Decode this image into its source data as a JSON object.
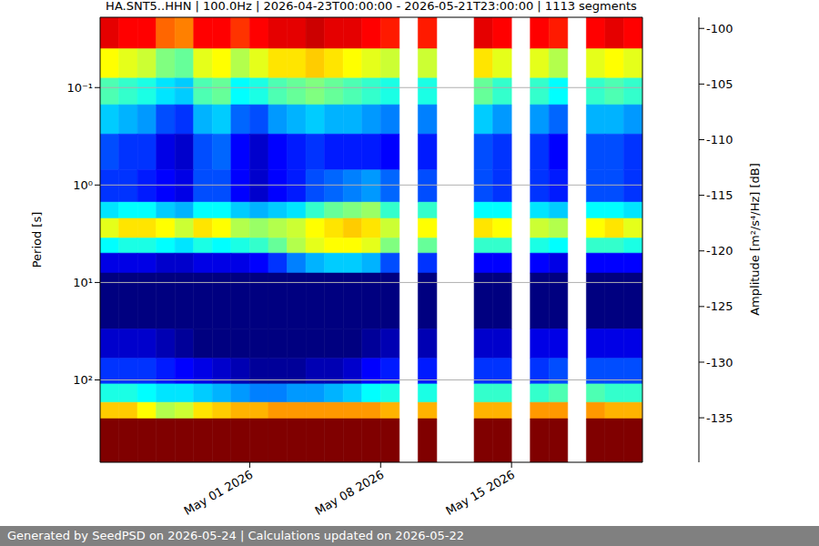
{
  "chart_data": {
    "type": "heatmap",
    "title": "HA.SNT5..HHN | 100.0Hz | 2026-04-23T00:00:00 - 2026-05-21T23:00:00 | 1113 segments",
    "y_label": "Period [s]",
    "colorbar_label": "Amplitude [m²/s⁴/Hz] [dB]",
    "x": [
      "2026-04-23",
      "2026-04-24",
      "2026-04-25",
      "2026-04-26",
      "2026-04-27",
      "2026-04-28",
      "2026-04-29",
      "2026-04-30",
      "2026-05-01",
      "2026-05-02",
      "2026-05-03",
      "2026-05-04",
      "2026-05-05",
      "2026-05-06",
      "2026-05-07",
      "2026-05-08",
      "2026-05-09",
      "2026-05-10",
      "2026-05-11",
      "2026-05-12",
      "2026-05-13",
      "2026-05-14",
      "2026-05-15",
      "2026-05-16",
      "2026-05-17",
      "2026-05-18",
      "2026-05-19",
      "2026-05-20",
      "2026-05-21"
    ],
    "xlim": [
      "2026-04-23",
      "2026-05-22"
    ],
    "xticks": [
      {
        "value": "2026-05-01",
        "label": "May 01 2026"
      },
      {
        "value": "2026-05-08",
        "label": "May 08 2026"
      },
      {
        "value": "2026-05-15",
        "label": "May 15 2026"
      }
    ],
    "y_edges": [
      0.019,
      0.04,
      0.08,
      0.15,
      0.3,
      0.7,
      1.5,
      2.2,
      3.5,
      5,
      8,
      30,
      60,
      110,
      170,
      250,
      700
    ],
    "ylim": [
      0.019,
      700
    ],
    "yticks": [
      {
        "value": 0.1,
        "label": "10⁻¹"
      },
      {
        "value": 1,
        "label": "10⁰"
      },
      {
        "value": 10,
        "label": "10¹"
      },
      {
        "value": 100,
        "label": "10²"
      }
    ],
    "log": "y",
    "grid": true,
    "z": [
      [
        -103,
        -104,
        -104,
        -108,
        -109,
        -104,
        -104,
        -106,
        -104,
        -103,
        -103,
        -102,
        -103,
        -103,
        -104,
        -105,
        null,
        -105,
        null,
        null,
        -103,
        -104,
        null,
        -104,
        -105,
        null,
        -104,
        -103,
        -104
      ],
      [
        -114,
        -115,
        -116,
        -119,
        -120,
        -115,
        -114,
        -117,
        -115,
        -113,
        -113,
        -112,
        -113,
        -114,
        -115,
        -116,
        null,
        -116,
        null,
        null,
        -113,
        -115,
        null,
        -115,
        -117,
        null,
        -115,
        -114,
        -115
      ],
      [
        -121,
        -122,
        -123,
        -125,
        -126,
        -121,
        -120,
        -124,
        -123,
        -121,
        -120,
        -119,
        -120,
        -121,
        -122,
        -123,
        null,
        -123,
        null,
        null,
        -120,
        -122,
        null,
        -122,
        -124,
        null,
        -122,
        -121,
        -122
      ],
      [
        -126,
        -127,
        -128,
        -131,
        -132,
        -127,
        -126,
        -130,
        -131,
        -128,
        -127,
        -126,
        -127,
        -127,
        -128,
        -129,
        null,
        -129,
        null,
        null,
        -126,
        -128,
        null,
        -128,
        -130,
        null,
        -127,
        -127,
        -128
      ],
      [
        -131,
        -132,
        -132,
        -135,
        -136,
        -131,
        -130,
        -134,
        -136,
        -134,
        -133,
        -132,
        -133,
        -133,
        -133,
        -134,
        null,
        -133,
        null,
        null,
        -131,
        -132,
        null,
        -132,
        -134,
        null,
        -131,
        -131,
        -132
      ],
      [
        -132,
        -132,
        -133,
        -134,
        -135,
        -131,
        -131,
        -134,
        -136,
        -134,
        -133,
        -131,
        -130,
        -129,
        -128,
        -130,
        null,
        -131,
        null,
        null,
        -131,
        -132,
        null,
        -132,
        -133,
        null,
        -131,
        -131,
        -132
      ],
      [
        -125,
        -124,
        -124,
        -126,
        -127,
        -124,
        -124,
        -126,
        -127,
        -126,
        -125,
        -122,
        -120,
        -119,
        -118,
        -122,
        null,
        -122,
        null,
        null,
        -124,
        -124,
        null,
        -125,
        -126,
        null,
        -124,
        -124,
        -125
      ],
      [
        -115,
        -113,
        -113,
        -114,
        -116,
        -113,
        -114,
        -117,
        -118,
        -117,
        -116,
        -114,
        -113,
        -112,
        -113,
        -116,
        null,
        -114,
        null,
        null,
        -113,
        -114,
        null,
        -116,
        -117,
        null,
        -114,
        -113,
        -115
      ],
      [
        -124,
        -123,
        -123,
        -124,
        -125,
        -123,
        -124,
        -123,
        -122,
        -120,
        -117,
        -115,
        -114,
        -114,
        -115,
        -119,
        null,
        -120,
        null,
        null,
        -122,
        -122,
        null,
        -123,
        -124,
        null,
        -122,
        -122,
        -123
      ],
      [
        -135,
        -135,
        -135,
        -136,
        -136,
        -135,
        -135,
        -135,
        -134,
        -132,
        -129,
        -127,
        -126,
        -126,
        -127,
        -131,
        null,
        -132,
        null,
        null,
        -134,
        -134,
        null,
        -134,
        -135,
        null,
        -134,
        -134,
        -134
      ],
      [
        -139,
        -139,
        -139,
        -139,
        -139,
        -139,
        -139,
        -139,
        -139,
        -139,
        -139,
        -139,
        -139,
        -139,
        -139,
        -139,
        null,
        -139,
        null,
        null,
        -139,
        -139,
        null,
        -139,
        -139,
        null,
        -139,
        -139,
        -139
      ],
      [
        -136,
        -136,
        -136,
        -137,
        -138,
        -139,
        -139,
        -139,
        -139,
        -139,
        -139,
        -139,
        -139,
        -139,
        -138,
        -137,
        null,
        -137,
        null,
        null,
        -136,
        -136,
        null,
        -135,
        -135,
        null,
        -135,
        -135,
        -135
      ],
      [
        -132,
        -132,
        -132,
        -133,
        -134,
        -135,
        -136,
        -137,
        -138,
        -138,
        -138,
        -137,
        -137,
        -136,
        -134,
        -133,
        null,
        -133,
        null,
        null,
        -132,
        -132,
        null,
        -132,
        -131,
        null,
        -131,
        -131,
        -131
      ],
      [
        -123,
        -123,
        -124,
        -125,
        -125,
        -126,
        -127,
        -128,
        -129,
        -129,
        -128,
        -128,
        -127,
        -126,
        -124,
        -123,
        null,
        -123,
        null,
        null,
        -122,
        -122,
        null,
        -122,
        -121,
        null,
        -121,
        -122,
        -122
      ],
      [
        -112,
        -112,
        -114,
        -117,
        -116,
        -113,
        -112,
        -111,
        -111,
        -110,
        -110,
        -110,
        -110,
        -110,
        -110,
        -111,
        null,
        -111,
        null,
        null,
        -111,
        -111,
        null,
        -110,
        -110,
        null,
        -110,
        -111,
        -111
      ],
      [
        -99,
        -99,
        -99,
        -99,
        -99,
        -99,
        -99,
        -99,
        -99,
        -99,
        -99,
        -99,
        -99,
        -99,
        -99,
        -99,
        null,
        -99,
        null,
        null,
        -99,
        -99,
        null,
        -99,
        -99,
        null,
        -99,
        -99,
        -99
      ]
    ],
    "colorbar_range": [
      -139,
      -99
    ],
    "colorbar_ticks": [
      -100,
      -105,
      -110,
      -115,
      -120,
      -125,
      -130,
      -135
    ]
  },
  "footer": "Generated by SeedPSD on 2026-05-24 | Calculations updated on 2026-05-22"
}
